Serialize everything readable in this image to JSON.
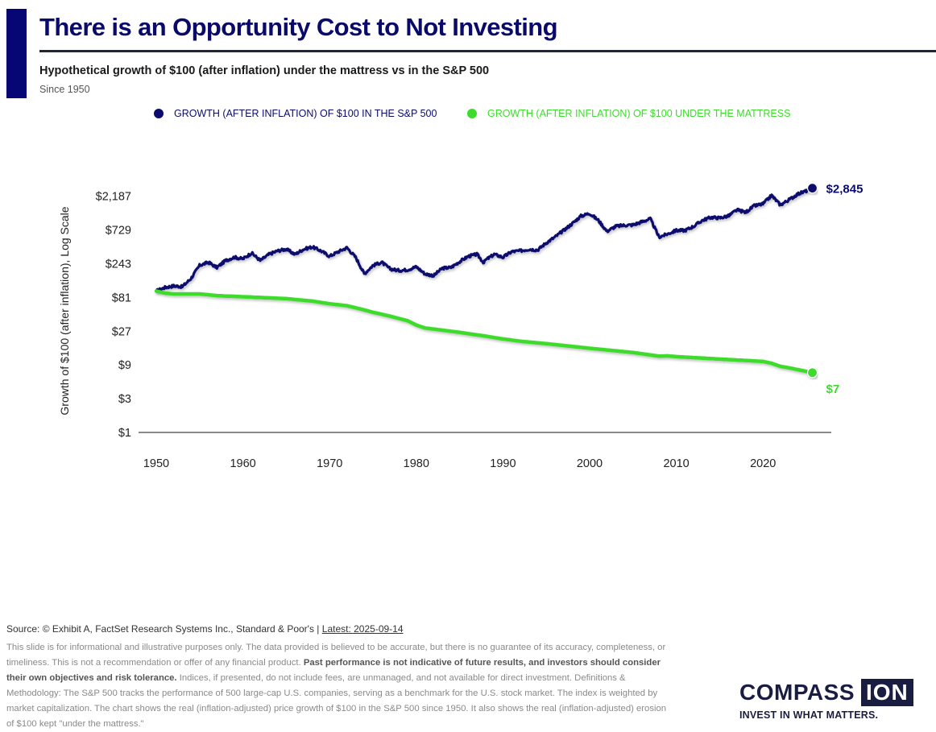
{
  "header": {
    "title": "There is an Opportunity Cost to Not Investing",
    "subtitle": "Hypothetical growth of $100 (after inflation) under the mattress vs in the S&P 500",
    "since": "Since 1950"
  },
  "colors": {
    "brand_navy": "#060675",
    "sp500": "#0b0b6e",
    "mattress": "#3ddc2c",
    "axis": "#444444"
  },
  "chart_data": {
    "type": "line",
    "title": "Hypothetical growth of $100 (after inflation) under the mattress vs in the S&P 500",
    "subtitle": "Since 1950",
    "xlabel": "",
    "ylabel": "Growth of $100 (after inflation), Log Scale",
    "y_scale": "log3",
    "ylim": [
      1,
      2845
    ],
    "xlim": [
      1950,
      2025.7
    ],
    "x_ticks": [
      1950,
      1960,
      1970,
      1980,
      1990,
      2000,
      2010,
      2020
    ],
    "x_tick_labels": [
      "1950",
      "1960",
      "1970",
      "1980",
      "1990",
      "2000",
      "2010",
      "2020"
    ],
    "y_ticks": [
      1,
      3,
      9,
      27,
      81,
      243,
      729,
      2187
    ],
    "y_tick_labels": [
      "$1",
      "$3",
      "$9",
      "$27",
      "$81",
      "$243",
      "$729",
      "$2,187"
    ],
    "grid": false,
    "legend_position": "top",
    "series": [
      {
        "name": "GROWTH (AFTER INFLATION) OF $100 IN THE S&P 500",
        "color": "#0b0b6e",
        "end_label": "$2,845",
        "x": [
          1950,
          1951,
          1952,
          1953,
          1954,
          1955,
          1956,
          1957,
          1958,
          1959,
          1960,
          1961,
          1962,
          1963,
          1964,
          1965,
          1966,
          1967,
          1968,
          1969,
          1970,
          1971,
          1972,
          1973,
          1974,
          1975,
          1976,
          1977,
          1978,
          1979,
          1980,
          1981,
          1982,
          1983,
          1984,
          1985,
          1986,
          1987,
          1987.8,
          1988,
          1989,
          1990,
          1991,
          1992,
          1993,
          1994,
          1995,
          1996,
          1997,
          1998,
          1999,
          2000,
          2001,
          2002,
          2003,
          2004,
          2005,
          2006,
          2007,
          2008,
          2009,
          2010,
          2011,
          2012,
          2013,
          2014,
          2015,
          2016,
          2017,
          2018,
          2019,
          2020,
          2021,
          2022,
          2023,
          2024,
          2025,
          2025.7
        ],
        "values": [
          100,
          112,
          118,
          115,
          150,
          230,
          255,
          215,
          270,
          300,
          285,
          345,
          270,
          330,
          370,
          390,
          330,
          390,
          420,
          370,
          310,
          360,
          410,
          300,
          175,
          230,
          255,
          205,
          195,
          200,
          220,
          175,
          165,
          210,
          215,
          260,
          310,
          330,
          250,
          275,
          330,
          300,
          360,
          370,
          390,
          380,
          480,
          580,
          720,
          900,
          1150,
          1250,
          1000,
          700,
          820,
          850,
          860,
          950,
          1050,
          580,
          640,
          720,
          720,
          820,
          1000,
          1100,
          1080,
          1150,
          1400,
          1300,
          1600,
          1700,
          2250,
          1650,
          1950,
          2350,
          2600,
          2845
        ]
      },
      {
        "name": "GROWTH (AFTER INFLATION) OF $100 UNDER THE MATTRESS",
        "color": "#3ddc2c",
        "end_label": "$7",
        "x": [
          1950,
          1951,
          1952,
          1955,
          1957,
          1960,
          1965,
          1968,
          1970,
          1972,
          1974,
          1975,
          1977,
          1979,
          1980,
          1981,
          1982,
          1985,
          1988,
          1990,
          1992,
          1995,
          2000,
          2005,
          2008,
          2009,
          2010,
          2015,
          2020,
          2021,
          2022,
          2023,
          2025.7
        ],
        "values": [
          100,
          93,
          91,
          91,
          86,
          83,
          78,
          72,
          66,
          62,
          54,
          50,
          44,
          38,
          33,
          30,
          29,
          26,
          23,
          21,
          19.5,
          18,
          15.5,
          13.5,
          12,
          12.1,
          11.8,
          10.9,
          10.1,
          9.5,
          8.6,
          8.2,
          7
        ]
      }
    ]
  },
  "legend": {
    "items": [
      {
        "label": "GROWTH (AFTER INFLATION) OF $100 IN THE S&P 500",
        "color": "#0b0b6e"
      },
      {
        "label": "GROWTH (AFTER INFLATION) OF $100 UNDER THE MATTRESS",
        "color": "#3ddc2c"
      }
    ]
  },
  "footer": {
    "source": "Source: © Exhibit A, FactSet Research Systems Inc., Standard & Poor's | ",
    "latest": "Latest: 2025-09-14",
    "disclaimer_1": "This slide is for informational and illustrative purposes only. The data provided is believed to be accurate, but there is no guarantee of its accuracy, completeness, or timeliness. This is not a recommendation or offer of any financial product. ",
    "disclaimer_bold": "Past performance is not indicative of future results, and investors should consider their own objectives and risk tolerance.",
    "disclaimer_2": " Indices, if presented, do not include fees, are unmanaged, and not available for direct investment. Definitions & Methodology: The S&P 500 tracks the performance of 500 large-cap U.S. companies, serving as a benchmark for the U.S. stock market. The index is weighted by market capitalization. The chart shows the real (inflation-adjusted) price growth of $100 in the S&P 500 since 1950. It also shows the real (inflation-adjusted) erosion of $100 kept \"under the mattress.\""
  },
  "logo": {
    "name_part1": "COMPASS",
    "name_part2": "ION",
    "tagline": "INVEST IN WHAT MATTERS."
  }
}
